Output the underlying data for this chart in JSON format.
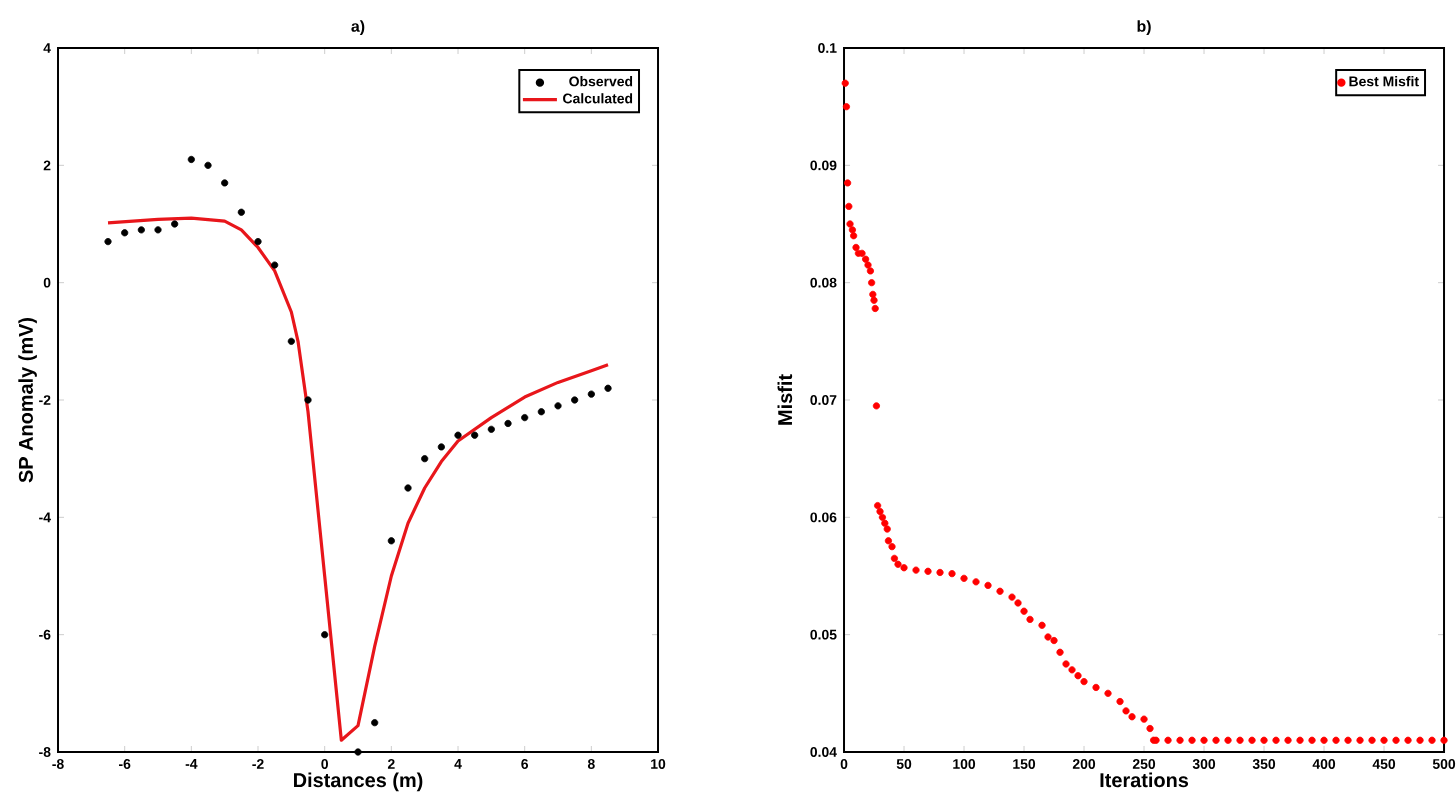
{
  "chart_data": [
    {
      "type": "line",
      "title": "a)",
      "xlabel": "Distances (m)",
      "ylabel": "SP Anomaly (mV)",
      "xlim": [
        -8,
        10
      ],
      "ylim": [
        -8,
        4
      ],
      "xticks": [
        -8,
        -6,
        -4,
        -2,
        0,
        2,
        4,
        6,
        8,
        10
      ],
      "yticks": [
        -8,
        -6,
        -4,
        -2,
        0,
        2,
        4
      ],
      "grid": false,
      "legend": "top right",
      "series": [
        {
          "name": "Observed",
          "type": "scatter",
          "marker": "circle",
          "color": "#000000",
          "x": [
            -6.5,
            -6,
            -5.5,
            -5,
            -4.5,
            -4,
            -3.5,
            -3,
            -2.5,
            -2,
            -1.5,
            -1,
            -0.5,
            0,
            1,
            1.5,
            2,
            2.5,
            3,
            3.5,
            4,
            4.5,
            5,
            5.5,
            6,
            6.5,
            7,
            7.5,
            8,
            8.5
          ],
          "values": [
            0.7,
            0.85,
            0.9,
            0.9,
            1.0,
            2.1,
            2.0,
            1.7,
            1.2,
            0.7,
            0.3,
            -1.0,
            -2.0,
            -6.0,
            -8.0,
            -7.5,
            -4.4,
            -3.5,
            -3.0,
            -2.8,
            -2.6,
            -2.6,
            -2.5,
            -2.4,
            -2.3,
            -2.2,
            -2.1,
            -2.0,
            -1.9,
            -1.8
          ]
        },
        {
          "name": "Calculated",
          "marker": "none",
          "line_style": "solid",
          "color": "#e8161b",
          "x": [
            -6.5,
            -5,
            -4,
            -3,
            -2.5,
            -2,
            -1.5,
            -1,
            -0.8,
            -0.5,
            0,
            0.5,
            1,
            1.5,
            2,
            2.5,
            3,
            3.5,
            4,
            5,
            6,
            7,
            8,
            8.5
          ],
          "values": [
            1.02,
            1.08,
            1.1,
            1.05,
            0.9,
            0.6,
            0.2,
            -0.5,
            -1.0,
            -2.2,
            -5.0,
            -7.8,
            -7.55,
            -6.2,
            -5.0,
            -4.1,
            -3.5,
            -3.05,
            -2.7,
            -2.3,
            -1.95,
            -1.7,
            -1.5,
            -1.4
          ]
        }
      ]
    },
    {
      "type": "scatter",
      "title": "b)",
      "xlabel": "Iterations",
      "ylabel": "Misfit",
      "xlim": [
        0,
        500
      ],
      "ylim": [
        0.04,
        0.1
      ],
      "xticks": [
        0,
        50,
        100,
        150,
        200,
        250,
        300,
        350,
        400,
        450,
        500
      ],
      "yticks": [
        0.04,
        0.05,
        0.06,
        0.07,
        0.08,
        0.09,
        0.1
      ],
      "grid": false,
      "legend": "top right",
      "series": [
        {
          "name": "Best Misfit",
          "marker": "circle",
          "color": "#ff0000",
          "x": [
            1,
            2,
            3,
            4,
            5,
            7,
            8,
            10,
            12,
            15,
            18,
            20,
            22,
            23,
            24,
            25,
            26,
            27,
            28,
            30,
            32,
            34,
            36,
            37,
            40,
            42,
            45,
            50,
            60,
            70,
            80,
            90,
            100,
            110,
            120,
            130,
            140,
            145,
            150,
            155,
            165,
            170,
            175,
            180,
            185,
            190,
            195,
            200,
            210,
            220,
            230,
            235,
            240,
            250,
            255,
            258,
            260,
            270,
            280,
            290,
            300,
            310,
            320,
            330,
            340,
            350,
            360,
            370,
            380,
            390,
            400,
            410,
            420,
            430,
            440,
            450,
            460,
            470,
            480,
            490,
            500
          ],
          "values": [
            0.097,
            0.095,
            0.0885,
            0.0865,
            0.085,
            0.0845,
            0.084,
            0.083,
            0.0825,
            0.0825,
            0.082,
            0.0815,
            0.081,
            0.08,
            0.079,
            0.0785,
            0.0778,
            0.0695,
            0.061,
            0.0605,
            0.06,
            0.0595,
            0.059,
            0.058,
            0.0575,
            0.0565,
            0.056,
            0.0557,
            0.0555,
            0.0554,
            0.0553,
            0.0552,
            0.0548,
            0.0545,
            0.0542,
            0.0537,
            0.0532,
            0.0527,
            0.052,
            0.0513,
            0.0508,
            0.0498,
            0.0495,
            0.0485,
            0.0475,
            0.047,
            0.0465,
            0.046,
            0.0455,
            0.045,
            0.0443,
            0.0435,
            0.043,
            0.0428,
            0.042,
            0.041,
            0.041,
            0.041,
            0.041,
            0.041,
            0.041,
            0.041,
            0.041,
            0.041,
            0.041,
            0.041,
            0.041,
            0.041,
            0.041,
            0.041,
            0.041,
            0.041,
            0.041,
            0.041,
            0.041,
            0.041,
            0.041,
            0.041,
            0.041,
            0.041,
            0.041
          ]
        }
      ]
    }
  ]
}
